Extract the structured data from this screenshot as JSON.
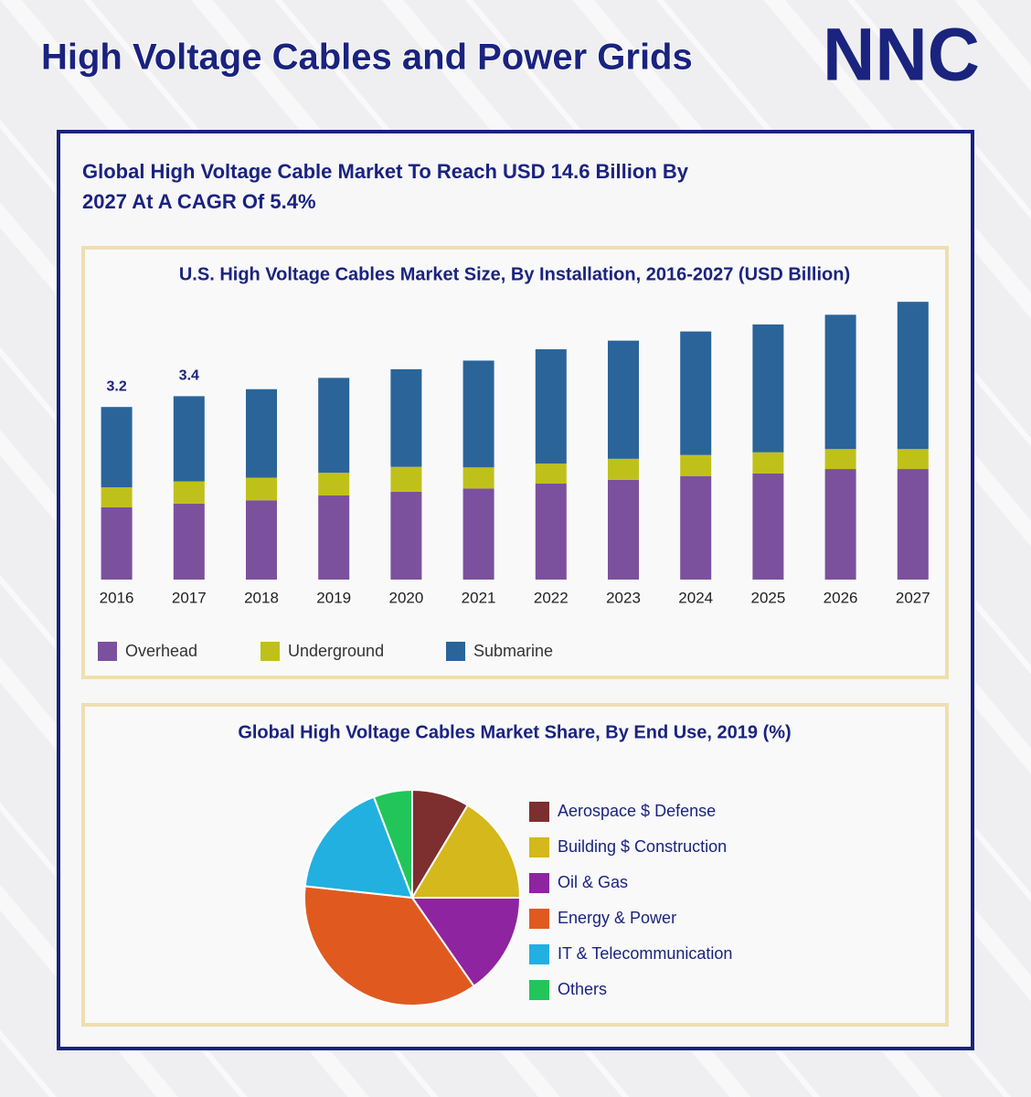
{
  "header": {
    "title": "High Voltage Cables and Power Grids",
    "logo": "NNC"
  },
  "headline": [
    "Global High Voltage Cable Market To Reach USD 14.6 Billion By",
    "2027 At A CAGR Of 5.4%"
  ],
  "chart_data": [
    {
      "type": "stacked_bar",
      "title": "U.S. High Voltage Cables Market Size, By Installation, 2016-2027 (USD Billion)",
      "categories": [
        "2016",
        "2017",
        "2018",
        "2019",
        "2020",
        "2021",
        "2022",
        "2023",
        "2024",
        "2025",
        "2026",
        "2027"
      ],
      "series": [
        {
          "name": "Overhead",
          "color": "#7b519d",
          "values": [
            1.34,
            1.41,
            1.47,
            1.56,
            1.63,
            1.69,
            1.78,
            1.85,
            1.92,
            1.97,
            2.05,
            2.05
          ]
        },
        {
          "name": "Underground",
          "color": "#bfc11a",
          "values": [
            0.37,
            0.41,
            0.42,
            0.42,
            0.46,
            0.39,
            0.37,
            0.39,
            0.39,
            0.39,
            0.37,
            0.37
          ]
        },
        {
          "name": "Submarine",
          "color": "#2a6499",
          "values": [
            1.49,
            1.58,
            1.64,
            1.76,
            1.81,
            1.98,
            2.12,
            2.19,
            2.29,
            2.37,
            2.49,
            2.73
          ]
        }
      ],
      "annotations": [
        {
          "category": "2016",
          "value": 3.2
        },
        {
          "category": "2017",
          "value": 3.4
        }
      ],
      "ylim": [
        0,
        5.5
      ],
      "legend": "bottom"
    },
    {
      "type": "pie",
      "title": "Global High Voltage Cables Market Share, By End Use, 2019 (%)",
      "categories": [
        "Aerospace $ Defense",
        "Building $ Construction",
        "Oil & Gas",
        "Energy & Power",
        "IT & Telecommunication",
        "Others"
      ],
      "values": [
        8.6,
        16.4,
        15.3,
        36.4,
        17.5,
        5.8
      ],
      "colors": [
        "#7d2e2e",
        "#d4b81c",
        "#8e24a0",
        "#e05a20",
        "#22b0e0",
        "#22c55a"
      ],
      "legend": "right"
    }
  ]
}
